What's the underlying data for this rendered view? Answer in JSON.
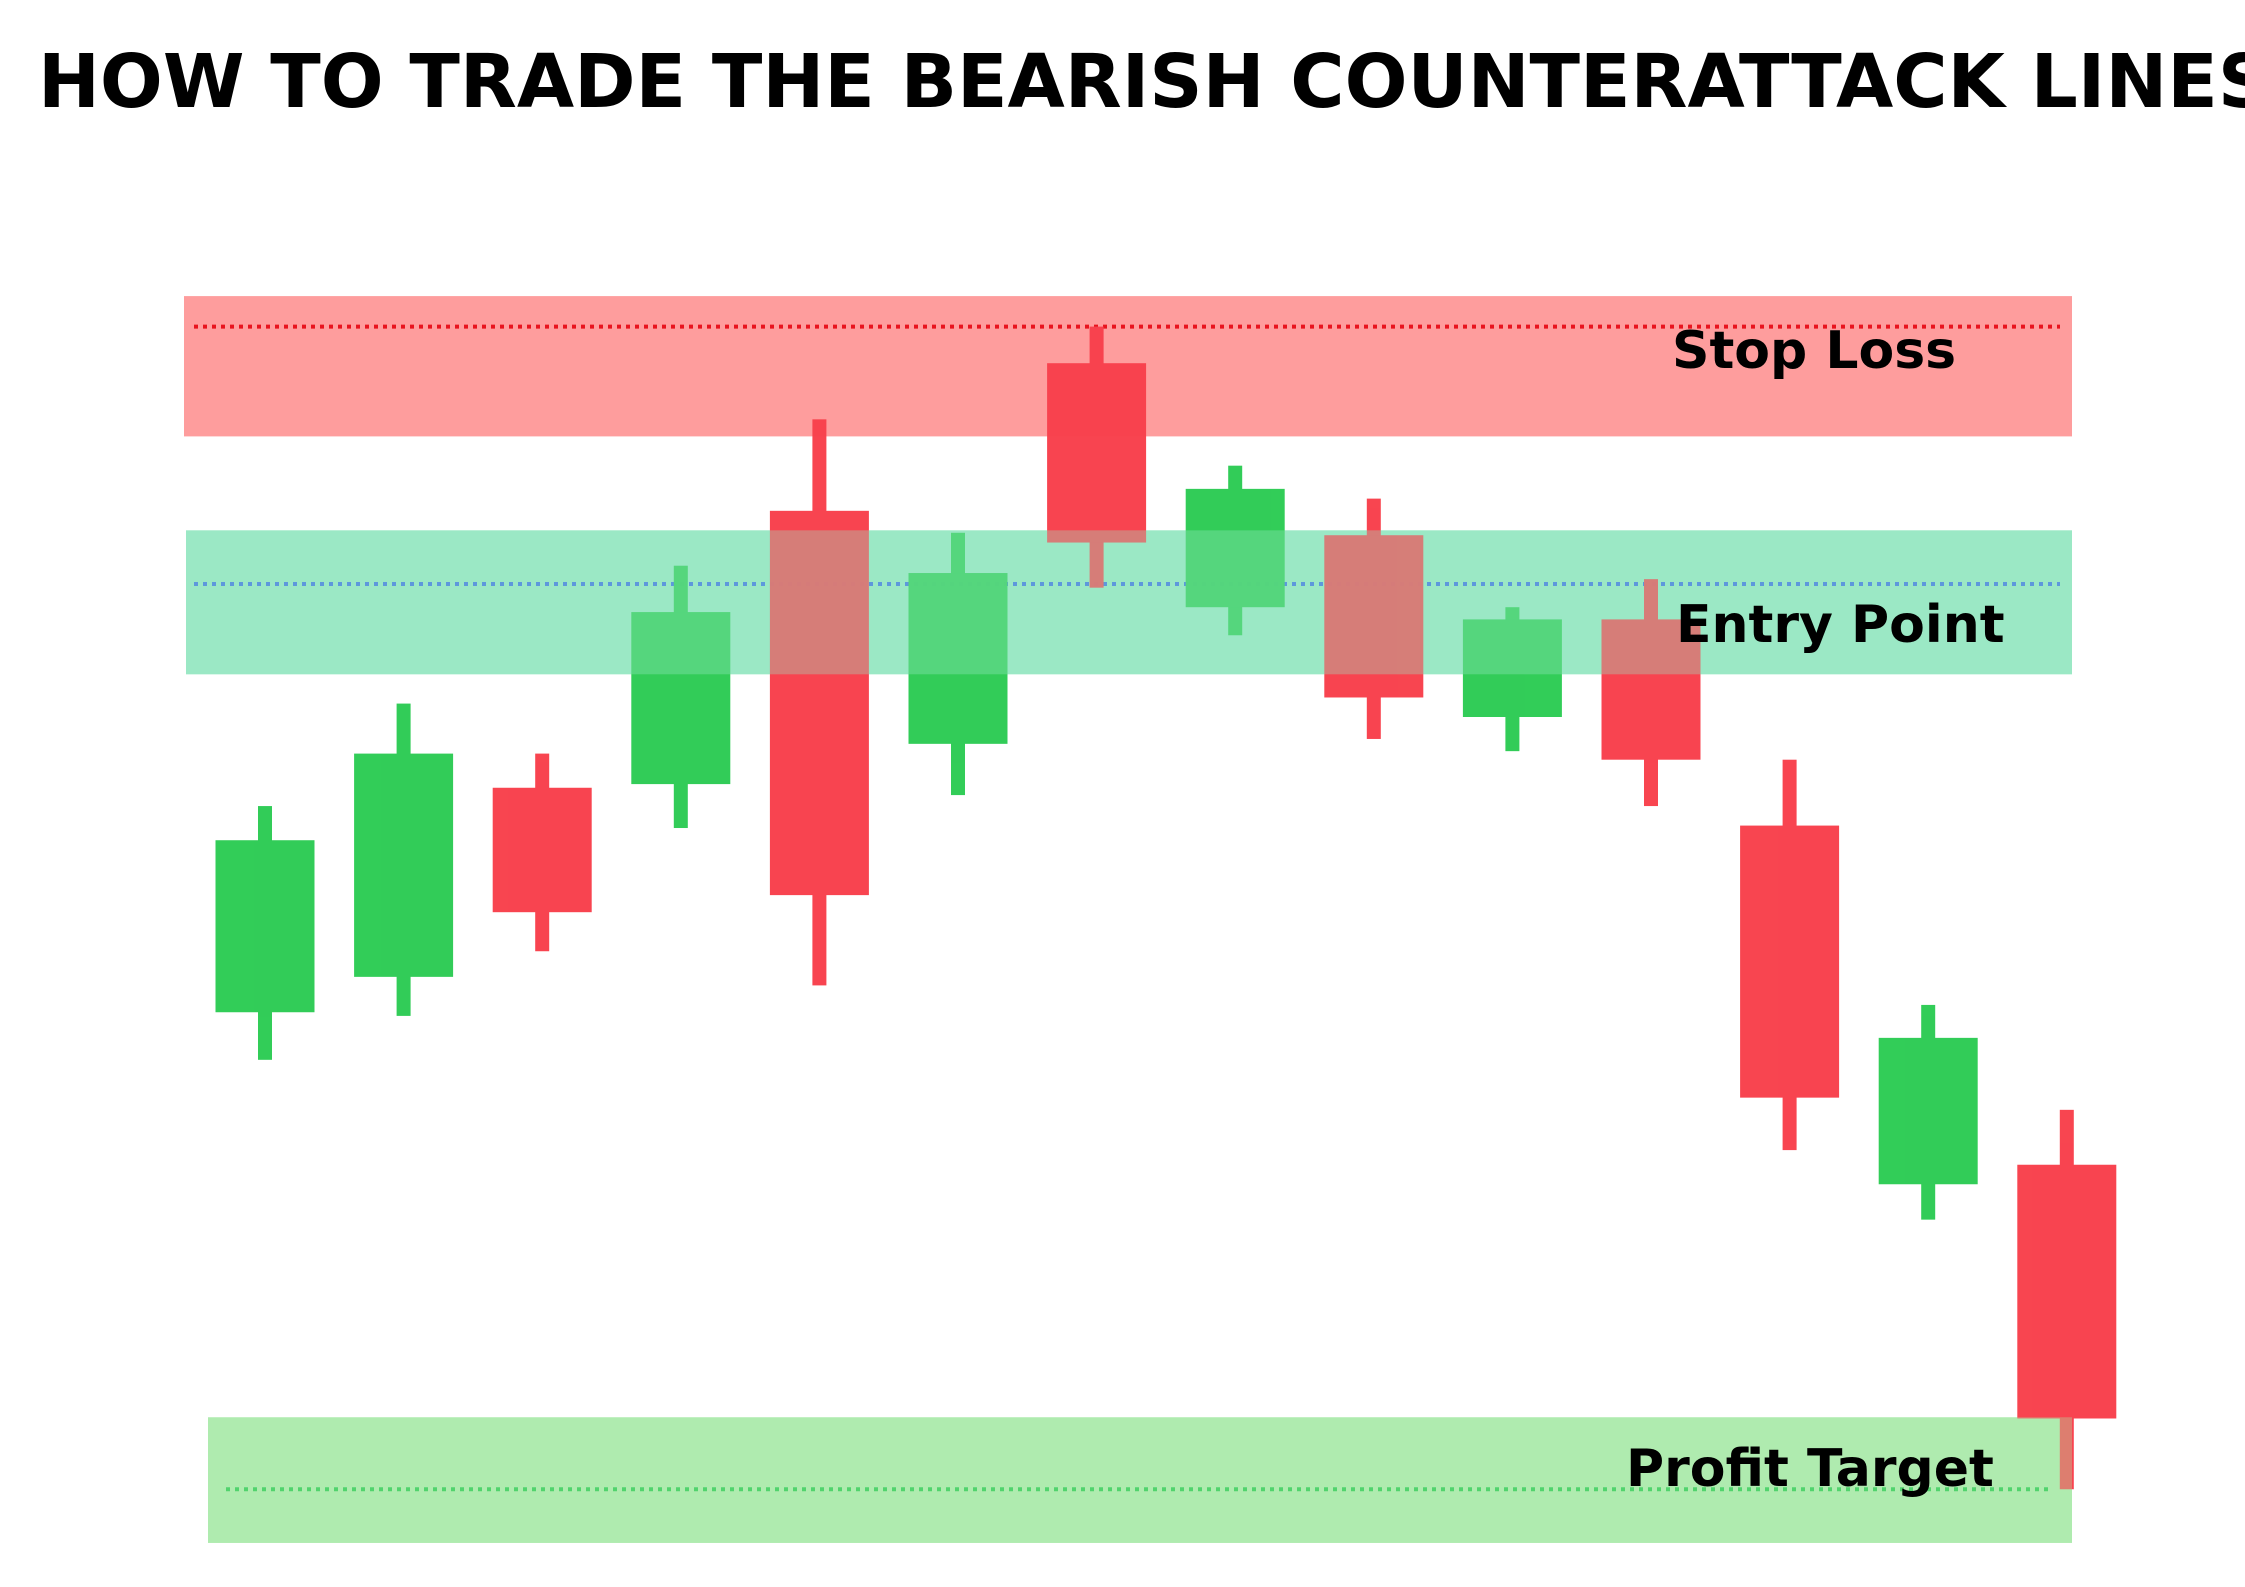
{
  "title": "HOW TO TRADE THE BEARISH COUNTERATTACK LINES",
  "colors": {
    "bullish": "#2ecc55",
    "bearish": "#f8414d",
    "stop_zone": "#fe9d9d",
    "entry_zone": "#9be8c5",
    "target_zone": "#b0ecb0",
    "stop_line": "#e8141e",
    "entry_line": "#3d6ee8",
    "target_line": "#1fc64a"
  },
  "chart_data": {
    "type": "candlestick",
    "title": "HOW TO TRADE THE BEARISH COUNTERATTACK LINES",
    "xlabel": "",
    "ylabel": "",
    "ylim": [
      0,
      100
    ],
    "grid": false,
    "legend": "none",
    "candles": [
      {
        "index": 1,
        "direction": "bullish",
        "open": 40.8,
        "close": 54.9,
        "high": 57.7,
        "low": 36.9
      },
      {
        "index": 2,
        "direction": "bullish",
        "open": 43.7,
        "close": 62.0,
        "high": 66.1,
        "low": 40.5
      },
      {
        "index": 3,
        "direction": "bearish",
        "open": 59.2,
        "close": 49.0,
        "high": 62.0,
        "low": 45.8
      },
      {
        "index": 4,
        "direction": "bullish",
        "open": 59.5,
        "close": 73.6,
        "high": 77.4,
        "low": 55.9
      },
      {
        "index": 5,
        "direction": "bearish",
        "open": 81.9,
        "close": 50.4,
        "high": 89.4,
        "low": 43.0
      },
      {
        "index": 6,
        "direction": "bullish",
        "open": 62.8,
        "close": 76.8,
        "high": 80.1,
        "low": 58.6
      },
      {
        "index": 7,
        "direction": "bearish",
        "open": 94.0,
        "close": 79.3,
        "high": 97.0,
        "low": 75.6
      },
      {
        "index": 8,
        "direction": "bullish",
        "open": 74.0,
        "close": 83.7,
        "high": 85.6,
        "low": 71.7
      },
      {
        "index": 9,
        "direction": "bearish",
        "open": 79.9,
        "close": 66.6,
        "high": 82.9,
        "low": 63.2
      },
      {
        "index": 10,
        "direction": "bullish",
        "open": 65.0,
        "close": 73.0,
        "high": 74.0,
        "low": 62.2
      },
      {
        "index": 11,
        "direction": "bearish",
        "open": 73.0,
        "close": 61.5,
        "high": 76.3,
        "low": 57.7
      },
      {
        "index": 12,
        "direction": "bearish",
        "open": 56.1,
        "close": 33.8,
        "high": 61.5,
        "low": 29.5
      },
      {
        "index": 13,
        "direction": "bullish",
        "open": 26.7,
        "close": 38.7,
        "high": 41.4,
        "low": 23.8
      },
      {
        "index": 14,
        "direction": "bearish",
        "open": 28.3,
        "close": 7.5,
        "high": 32.8,
        "low": 1.7
      }
    ],
    "zones": [
      {
        "name": "stop",
        "label": "Stop Loss",
        "from": 88.0,
        "to": 99.5,
        "level": 97.0
      },
      {
        "name": "entry",
        "label": "Entry Point",
        "from": 68.5,
        "to": 80.3,
        "level": 75.9
      },
      {
        "name": "target",
        "label": "Profit Target",
        "from": -2.7,
        "to": 7.6,
        "level": 1.7
      }
    ]
  }
}
